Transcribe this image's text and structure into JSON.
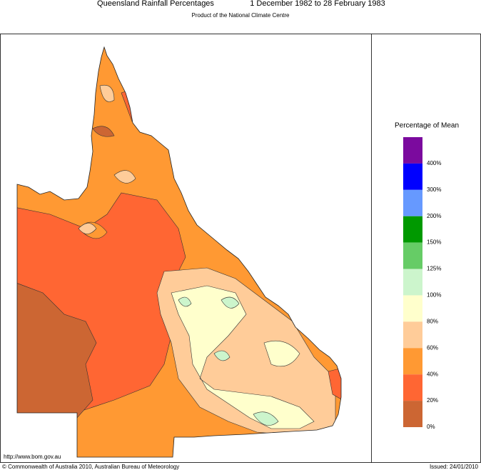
{
  "header": {
    "title": "Queensland Rainfall Percentages",
    "period": "1 December 1982 to 28 February 1983",
    "subtitle": "Product of the National Climate Centre"
  },
  "legend": {
    "title": "Percentage of Mean",
    "items": [
      {
        "color": "#7b0a9e",
        "label": "400%"
      },
      {
        "color": "#0000ff",
        "label": "300%"
      },
      {
        "color": "#6699ff",
        "label": "200%"
      },
      {
        "color": "#009900",
        "label": "150%"
      },
      {
        "color": "#66cc66",
        "label": "125%"
      },
      {
        "color": "#ccf5cc",
        "label": "100%"
      },
      {
        "color": "#ffffcc",
        "label": "80%"
      },
      {
        "color": "#ffcc99",
        "label": "60%"
      },
      {
        "color": "#ff9933",
        "label": "40%"
      },
      {
        "color": "#ff6633",
        "label": "20%"
      },
      {
        "color": "#cc6633",
        "label": "0%"
      }
    ]
  },
  "footer": {
    "url": "http://www.bom.gov.au",
    "copyright": "© Commonwealth of Australia 2010, Australian Bureau of Meteorology",
    "issued": "Issued: 24/01/2010"
  }
}
